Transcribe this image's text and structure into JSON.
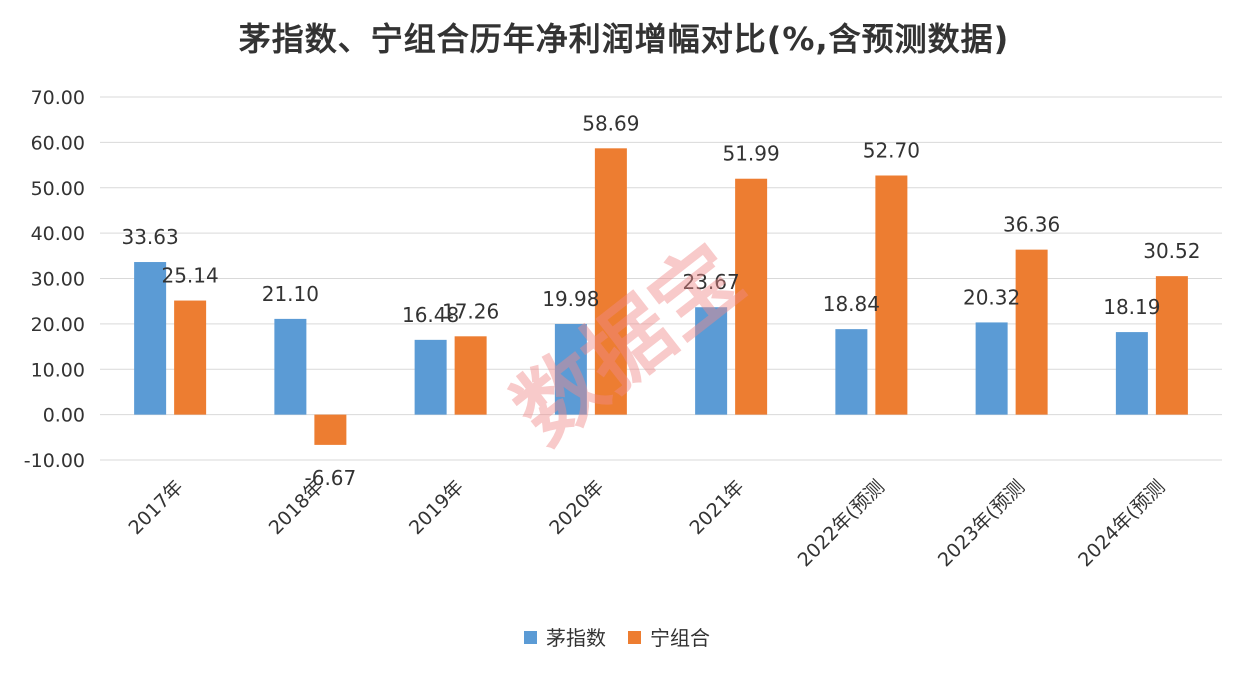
{
  "chart_data": {
    "type": "bar",
    "title": "茅指数、宁组合历年净利润增幅对比(%,含预测数据)",
    "categories": [
      "2017年",
      "2018年",
      "2019年",
      "2020年",
      "2021年",
      "2022年(预测",
      "2023年(预测",
      "2024年(预测"
    ],
    "series": [
      {
        "name": "茅指数",
        "color": "#5B9BD5",
        "values": [
          33.63,
          21.1,
          16.48,
          19.98,
          23.67,
          18.84,
          20.32,
          18.19
        ]
      },
      {
        "name": "宁组合",
        "color": "#ED7D31",
        "values": [
          25.14,
          -6.67,
          17.26,
          58.69,
          51.99,
          52.7,
          36.36,
          30.52
        ]
      }
    ],
    "ylim": [
      -10,
      70
    ],
    "yticks": [
      "-10.00",
      "0.00",
      "10.00",
      "20.00",
      "30.00",
      "40.00",
      "50.00",
      "60.00",
      "70.00"
    ],
    "grid": true,
    "legend_position": "bottom"
  },
  "watermark": {
    "text": "数据宝",
    "color": "#F08A8A"
  }
}
